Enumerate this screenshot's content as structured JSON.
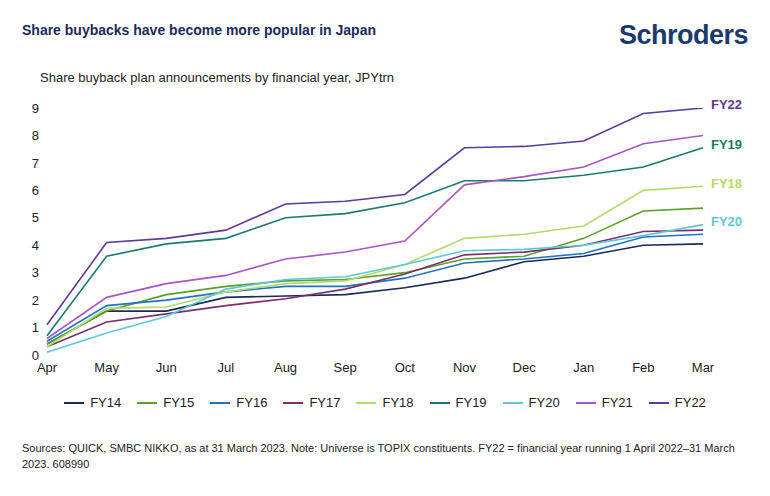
{
  "chart_data": {
    "type": "line",
    "title": "Share buybacks have become more popular in Japan",
    "logo": "Schroders",
    "subtitle": "Share buyback plan announcements by financial year, JPYtrn",
    "note": "Sources: QUICK, SMBC NIKKO, as at 31 March 2023. Note: Universe is TOPIX constituents. FY22 = financial year running 1 April 2022–31 March 2023. 608990",
    "categories": [
      "Apr",
      "May",
      "Jun",
      "Jul",
      "Aug",
      "Sep",
      "Oct",
      "Nov",
      "Dec",
      "Jan",
      "Feb",
      "Mar"
    ],
    "ylim": [
      0,
      9
    ],
    "yticks": [
      0,
      1,
      2,
      3,
      4,
      5,
      6,
      7,
      8,
      9
    ],
    "grid": false,
    "legend": "bottom",
    "series": [
      {
        "name": "FY14",
        "color": "#1b2a5c",
        "values": [
          0.4,
          1.6,
          1.6,
          2.1,
          2.15,
          2.2,
          2.45,
          2.8,
          3.4,
          3.6,
          4.0,
          4.05
        ]
      },
      {
        "name": "FY15",
        "color": "#5aa02c",
        "values": [
          0.4,
          1.6,
          2.2,
          2.5,
          2.7,
          2.75,
          3.0,
          3.5,
          3.6,
          4.25,
          5.25,
          5.35
        ]
      },
      {
        "name": "FY16",
        "color": "#1f74c0",
        "values": [
          0.5,
          1.8,
          2.0,
          2.3,
          2.5,
          2.5,
          2.8,
          3.35,
          3.5,
          3.7,
          4.3,
          4.4
        ]
      },
      {
        "name": "FY17",
        "color": "#7b2d6e",
        "values": [
          0.3,
          1.2,
          1.5,
          1.8,
          2.05,
          2.4,
          2.95,
          3.65,
          3.75,
          4.0,
          4.5,
          4.55
        ]
      },
      {
        "name": "FY18",
        "color": "#b5d96b",
        "values": [
          0.3,
          1.7,
          1.75,
          2.3,
          2.6,
          2.7,
          3.3,
          4.25,
          4.4,
          4.7,
          6.0,
          6.15
        ]
      },
      {
        "name": "FY19",
        "color": "#1a7a6e",
        "values": [
          0.7,
          3.6,
          4.05,
          4.25,
          5.0,
          5.15,
          5.55,
          6.35,
          6.35,
          6.55,
          6.85,
          7.55
        ]
      },
      {
        "name": "FY20",
        "color": "#5cc8d8",
        "values": [
          0.1,
          0.8,
          1.4,
          2.4,
          2.75,
          2.85,
          3.3,
          3.8,
          3.85,
          4.0,
          4.35,
          4.75
        ]
      },
      {
        "name": "FY21",
        "color": "#a855c8",
        "values": [
          0.6,
          2.1,
          2.6,
          2.9,
          3.5,
          3.75,
          4.15,
          6.2,
          6.5,
          6.85,
          7.7,
          8.0
        ]
      },
      {
        "name": "FY22",
        "color": "#5a3a9a",
        "values": [
          1.1,
          4.1,
          4.25,
          4.55,
          5.5,
          5.6,
          5.85,
          7.55,
          7.6,
          7.8,
          8.8,
          9.0
        ]
      }
    ],
    "annotations": [
      {
        "text": "FY22",
        "series": "FY22"
      },
      {
        "text": "FY19",
        "series": "FY19"
      },
      {
        "text": "FY18",
        "series": "FY18"
      },
      {
        "text": "FY20",
        "series": "FY20"
      }
    ]
  }
}
